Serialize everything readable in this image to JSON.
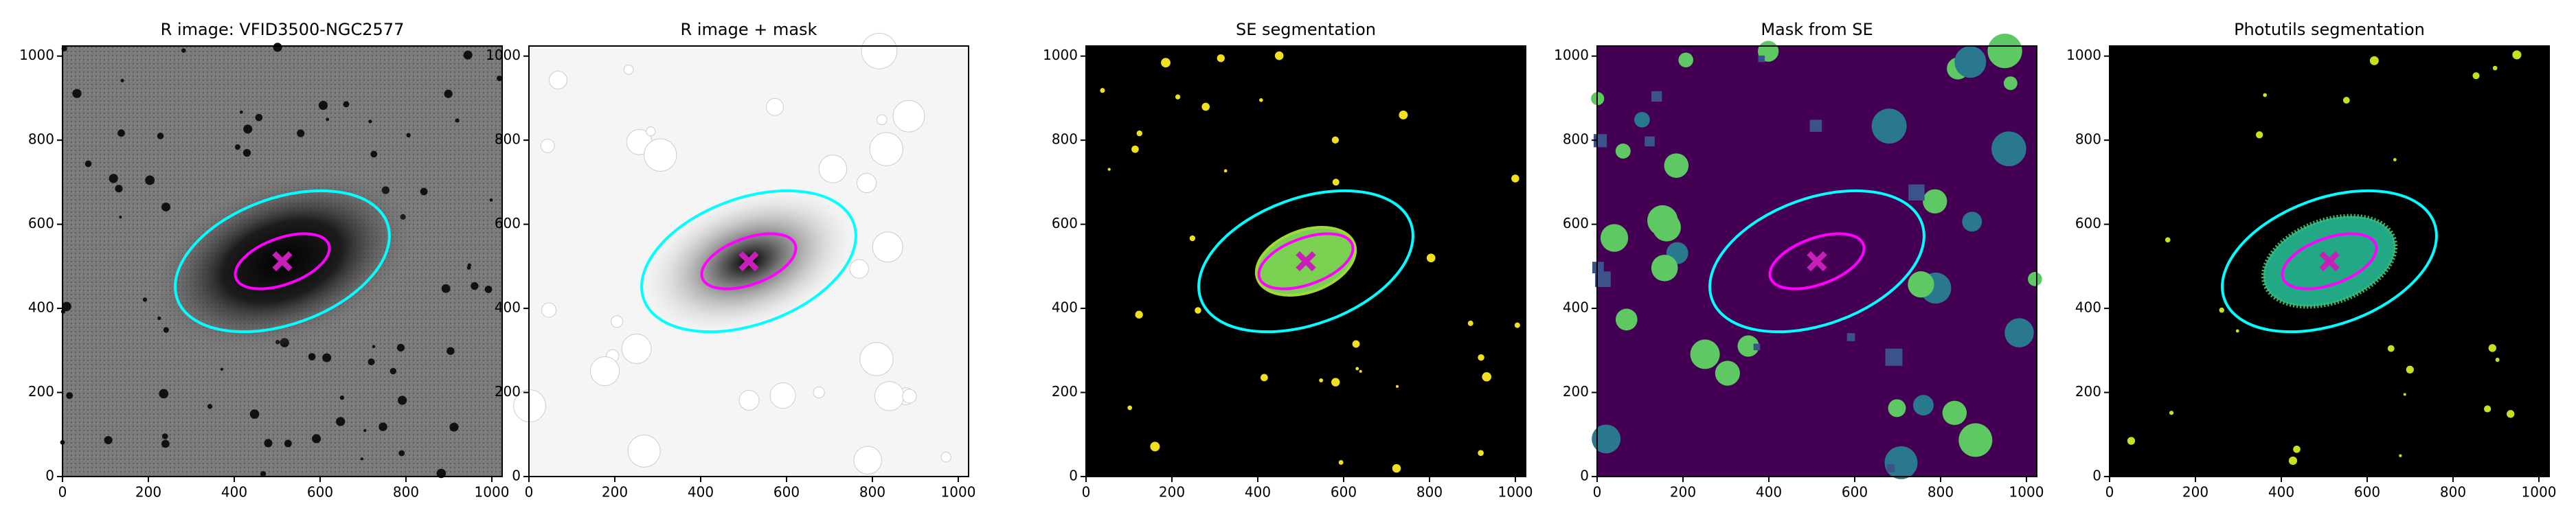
{
  "chart_data": [
    {
      "type": "image",
      "title": "R image: VFID3500-NGC2577",
      "xlim": [
        0,
        1024
      ],
      "ylim": [
        0,
        1024
      ],
      "xticks": [
        0,
        200,
        400,
        600,
        800,
        1000
      ],
      "yticks": [
        0,
        200,
        400,
        600,
        800,
        1000
      ],
      "center": [
        512,
        512
      ],
      "marker_color": "#c71fb8",
      "ellipses": [
        {
          "color": "#00ffff",
          "a": 260,
          "b": 150,
          "angle": 20
        },
        {
          "color": "#ff00ff",
          "a": 115,
          "b": 55,
          "angle": 20
        }
      ]
    },
    {
      "type": "image",
      "title": "R image + mask",
      "xlim": [
        0,
        1024
      ],
      "ylim": [
        0,
        1024
      ],
      "xticks": [
        0,
        200,
        400,
        600,
        800,
        1000
      ],
      "yticks": [
        0,
        200,
        400,
        600,
        800,
        1000
      ],
      "center": [
        512,
        512
      ],
      "marker_color": "#c71fb8",
      "ellipses": [
        {
          "color": "#00ffff",
          "a": 260,
          "b": 150,
          "angle": 20
        },
        {
          "color": "#ff00ff",
          "a": 115,
          "b": 55,
          "angle": 20
        }
      ]
    },
    {
      "type": "image",
      "title": "SE segmentation",
      "xlim": [
        0,
        1024
      ],
      "ylim": [
        0,
        1024
      ],
      "xticks": [
        0,
        200,
        400,
        600,
        800,
        1000
      ],
      "yticks": [
        0,
        200,
        400,
        600,
        800,
        1000
      ],
      "center": [
        512,
        512
      ],
      "marker_color": "#c71fb8",
      "ellipses": [
        {
          "color": "#00ffff",
          "a": 260,
          "b": 150,
          "angle": 20
        },
        {
          "color": "#ff00ff",
          "a": 115,
          "b": 55,
          "angle": 20
        }
      ]
    },
    {
      "type": "image",
      "title": "Mask from SE",
      "xlim": [
        0,
        1024
      ],
      "ylim": [
        0,
        1024
      ],
      "xticks": [
        0,
        200,
        400,
        600,
        800,
        1000
      ],
      "yticks": [
        0,
        200,
        400,
        600,
        800,
        1000
      ],
      "center": [
        512,
        512
      ],
      "marker_color": "#c71fb8",
      "ellipses": [
        {
          "color": "#00ffff",
          "a": 260,
          "b": 150,
          "angle": 20
        },
        {
          "color": "#ff00ff",
          "a": 115,
          "b": 55,
          "angle": 20
        }
      ]
    },
    {
      "type": "image",
      "title": "Photutils segmentation",
      "xlim": [
        0,
        1024
      ],
      "ylim": [
        0,
        1024
      ],
      "xticks": [
        0,
        200,
        400,
        600,
        800,
        1000
      ],
      "yticks": [
        0,
        200,
        400,
        600,
        800,
        1000
      ],
      "center": [
        512,
        512
      ],
      "marker_color": "#c71fb8",
      "ellipses": [
        {
          "color": "#00ffff",
          "a": 260,
          "b": 150,
          "angle": 20
        },
        {
          "color": "#ff00ff",
          "a": 115,
          "b": 55,
          "angle": 20
        }
      ]
    }
  ]
}
